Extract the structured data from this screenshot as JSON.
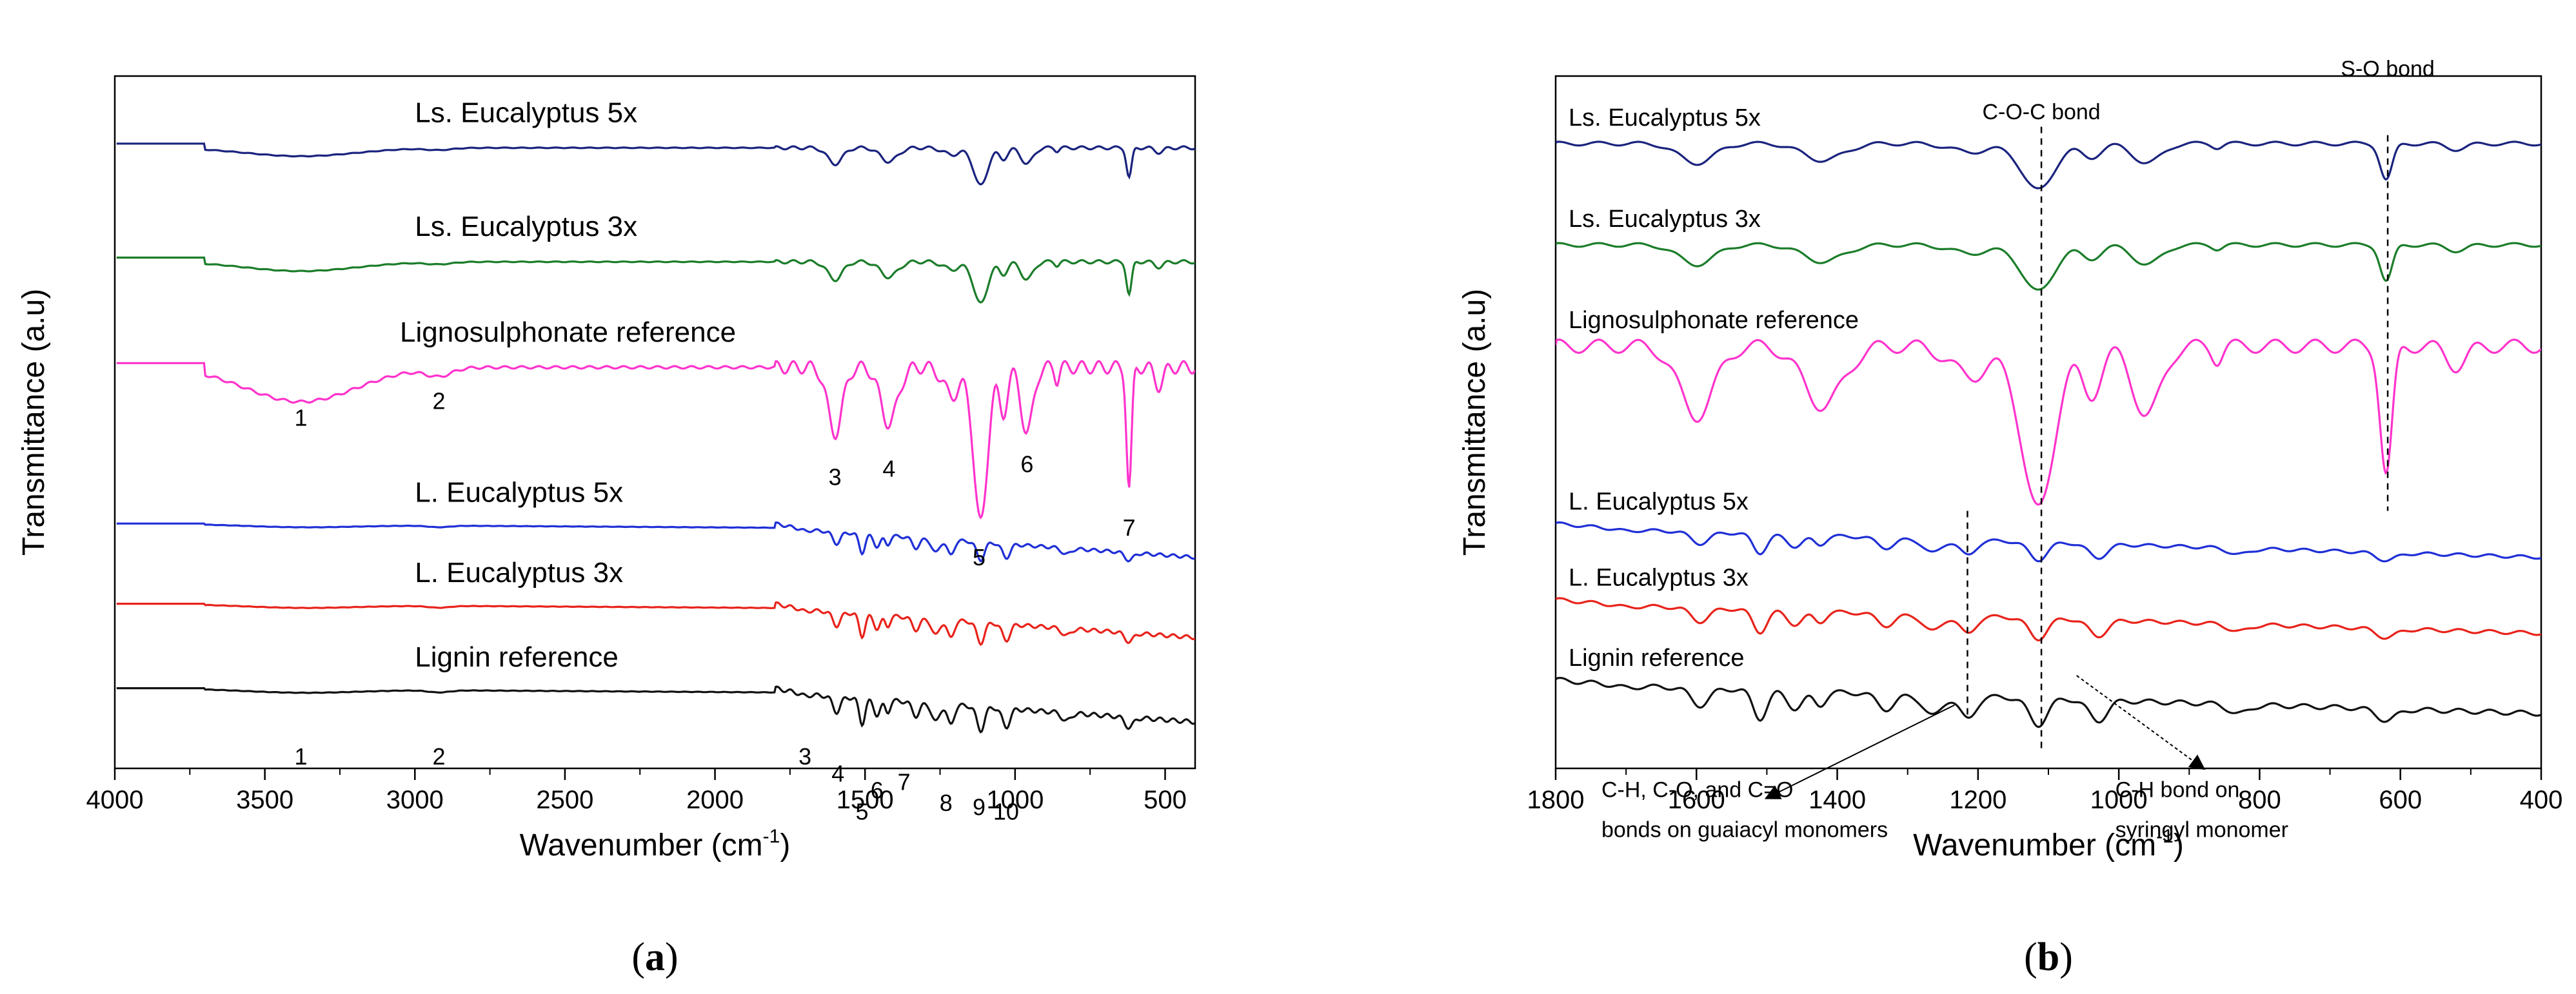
{
  "chart_data": [
    {
      "panel": "a",
      "type": "line",
      "panel_label": "a",
      "xlabel": "Wavenumber (cm",
      "xlabel_sup": "-1",
      "xlabel_close": ")",
      "ylabel": "Transmittance (a.u)",
      "xlim": [
        4000,
        400
      ],
      "xticks": [
        4000,
        3500,
        3000,
        2500,
        2000,
        1500,
        1000,
        500
      ],
      "xtick_labels": [
        "4000",
        "3500",
        "3000",
        "2500",
        "2000",
        "1500",
        "1000",
        "500"
      ],
      "series": [
        {
          "name": "Ls. Eucalyptus 5x",
          "color": "#1a237e",
          "base": 6.45,
          "ampl": 0.45,
          "profile": "ls",
          "label_x": 3000
        },
        {
          "name": "Ls. Eucalyptus 3x",
          "color": "#1b7d2a",
          "base": 5.1,
          "ampl": 0.5,
          "profile": "ls",
          "label_x": 3000
        },
        {
          "name": "Lignosulphonate reference",
          "color": "#ff33cc",
          "base": 3.85,
          "ampl": 1.85,
          "profile": "ls",
          "label_x": 3050
        },
        {
          "name": "L. Eucalyptus 5x",
          "color": "#1f2fd6",
          "base": 1.95,
          "ampl": 0.3,
          "profile": "lig",
          "label_x": 3000
        },
        {
          "name": "L. Eucalyptus 3x",
          "color": "#e8231b",
          "base": 1.0,
          "ampl": 0.35,
          "profile": "lig",
          "label_x": 3000
        },
        {
          "name": "Lignin reference",
          "color": "#111111",
          "base": 0.0,
          "ampl": 0.4,
          "profile": "lig",
          "label_x": 3000
        }
      ],
      "annotations_lignosulphonate": [
        {
          "text": "1",
          "x": 3380
        },
        {
          "text": "2",
          "x": 2920
        },
        {
          "text": "3",
          "x": 1600
        },
        {
          "text": "4",
          "x": 1420
        },
        {
          "text": "5",
          "x": 1120
        },
        {
          "text": "6",
          "x": 960
        },
        {
          "text": "7",
          "x": 620
        }
      ],
      "annotations_lignin": [
        {
          "text": "1",
          "x": 3380
        },
        {
          "text": "2",
          "x": 2920
        },
        {
          "text": "3",
          "x": 1700
        },
        {
          "text": "4",
          "x": 1590
        },
        {
          "text": "5",
          "x": 1510
        },
        {
          "text": "6",
          "x": 1460
        },
        {
          "text": "7",
          "x": 1370
        },
        {
          "text": "8",
          "x": 1230
        },
        {
          "text": "9",
          "x": 1120
        },
        {
          "text": "10",
          "x": 1030
        }
      ]
    },
    {
      "panel": "b",
      "type": "line",
      "panel_label": "b",
      "xlabel": "Wavenumber (cm",
      "xlabel_sup": "-1",
      "xlabel_close": ")",
      "ylabel": "Transmittance (a.u)",
      "xlim": [
        1800,
        400
      ],
      "xticks": [
        1800,
        1600,
        1400,
        1200,
        1000,
        800,
        600,
        400
      ],
      "xtick_labels": [
        "1800",
        "1600",
        "1400",
        "1200",
        "1000",
        "800",
        "600",
        "400"
      ],
      "series": [
        {
          "name": "Ls. Eucalyptus 5x",
          "color": "#1a237e",
          "base": 6.5,
          "ampl": 0.55,
          "profile": "ls"
        },
        {
          "name": "Ls. Eucalyptus 3x",
          "color": "#1b7d2a",
          "base": 5.3,
          "ampl": 0.55,
          "profile": "ls"
        },
        {
          "name": "Lignosulphonate reference",
          "color": "#ff33cc",
          "base": 4.1,
          "ampl": 1.95,
          "profile": "ls"
        },
        {
          "name": "L. Eucalyptus 5x",
          "color": "#1f2fd6",
          "base": 1.95,
          "ampl": 0.3,
          "profile": "lig"
        },
        {
          "name": "L. Eucalyptus 3x",
          "color": "#e8231b",
          "base": 1.05,
          "ampl": 0.35,
          "profile": "lig"
        },
        {
          "name": "Lignin reference",
          "color": "#111111",
          "base": 0.1,
          "ampl": 0.45,
          "profile": "lig"
        }
      ],
      "reference_lines": [
        {
          "x": 1110,
          "label": "C-O-C bond"
        },
        {
          "x": 618,
          "label": "S-O bond"
        },
        {
          "x": 1215,
          "label": ""
        }
      ],
      "annotations": [
        {
          "line1": "C-H, C-O, and C=O",
          "line2": "bonds on guaiacyl monomers",
          "arrow_from_x": 1215
        },
        {
          "line1": "C-H bond on",
          "line2": "syringyl monomer",
          "arrow_from_x": 1110
        }
      ]
    }
  ]
}
